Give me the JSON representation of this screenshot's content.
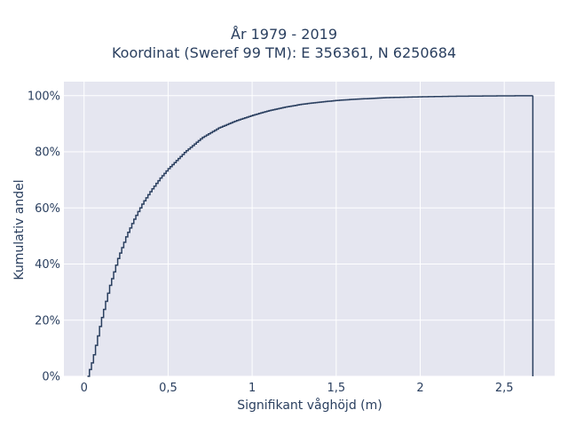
{
  "chart_data": {
    "type": "line",
    "subtype": "empirical-cdf-step",
    "title_line1": "År 1979 - 2019",
    "title_line2": "Koordinat (Sweref 99 TM): E 356361, N 6250684",
    "xlabel": "Signifikant våghöjd (m)",
    "ylabel": "Kumulativ andel",
    "xlim": [
      -0.12,
      2.8
    ],
    "ylim": [
      0,
      1.05
    ],
    "x_ticks": [
      0,
      0.5,
      1,
      1.5,
      2,
      2.5
    ],
    "x_tick_labels": [
      "0",
      "0,5",
      "1",
      "1,5",
      "2",
      "2,5"
    ],
    "y_ticks": [
      0,
      0.2,
      0.4,
      0.6,
      0.8,
      1.0
    ],
    "y_tick_labels": [
      "0%",
      "20%",
      "40%",
      "60%",
      "80%",
      "100%"
    ],
    "grid": true,
    "line_color": "#2a3f5f",
    "plot_background": "#e5e6f0",
    "series": [
      {
        "x": [
          0.02,
          0.05,
          0.1,
          0.15,
          0.2,
          0.25,
          0.3,
          0.35,
          0.4,
          0.45,
          0.5,
          0.6,
          0.7,
          0.8,
          0.9,
          1.0,
          1.1,
          1.2,
          1.3,
          1.4,
          1.5,
          1.6,
          1.8,
          2.0,
          2.2,
          2.4,
          2.67
        ],
        "y": [
          0.0,
          0.06,
          0.2,
          0.32,
          0.42,
          0.5,
          0.565,
          0.62,
          0.665,
          0.705,
          0.74,
          0.8,
          0.85,
          0.885,
          0.91,
          0.93,
          0.947,
          0.96,
          0.97,
          0.977,
          0.983,
          0.987,
          0.993,
          0.996,
          0.998,
          0.999,
          1.0
        ]
      }
    ]
  }
}
